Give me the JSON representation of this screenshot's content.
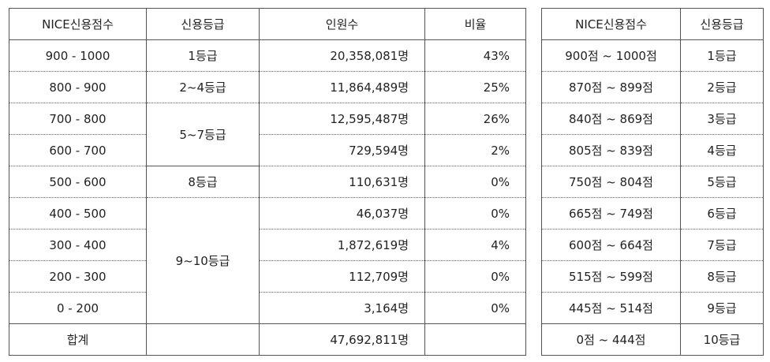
{
  "left_table": {
    "headers": [
      "NICE신용점수",
      "신용등급",
      "인원수",
      "비율"
    ],
    "rows": [
      {
        "score": "900 - 1000",
        "count": "20,358,081명",
        "ratio": "43%"
      },
      {
        "score": "800 - 900",
        "count": "11,864,489명",
        "ratio": "25%"
      },
      {
        "score": "700 - 800",
        "count": "12,595,487명",
        "ratio": "26%"
      },
      {
        "score": "600 - 700",
        "count": "729,594명",
        "ratio": "2%"
      },
      {
        "score": "500 - 600",
        "count": "110,631명",
        "ratio": "0%"
      },
      {
        "score": "400 - 500",
        "count": "46,037명",
        "ratio": "0%"
      },
      {
        "score": "300 - 400",
        "count": "1,872,619명",
        "ratio": "4%"
      },
      {
        "score": "200 - 300",
        "count": "112,709명",
        "ratio": "0%"
      },
      {
        "score": "0 - 200",
        "count": "3,164명",
        "ratio": "0%"
      }
    ],
    "grades": [
      "1등급",
      "2~4등급",
      "5~7등급",
      "8등급",
      "9~10등급"
    ],
    "total": {
      "label": "합계",
      "count": "47,692,811명"
    }
  },
  "right_table": {
    "headers": [
      "NICE신용점수",
      "신용등급"
    ],
    "rows": [
      {
        "score": "900점 ~ 1000점",
        "grade": "1등급"
      },
      {
        "score": "870점 ~ 899점",
        "grade": "2등급"
      },
      {
        "score": "840점 ~ 869점",
        "grade": "3등급"
      },
      {
        "score": "805점 ~ 839점",
        "grade": "4등급"
      },
      {
        "score": "750점 ~ 804점",
        "grade": "5등급"
      },
      {
        "score": "665점 ~ 749점",
        "grade": "6등급"
      },
      {
        "score": "600점 ~ 664점",
        "grade": "7등급"
      },
      {
        "score": "515점 ~ 599점",
        "grade": "8등급"
      },
      {
        "score": "445점 ~ 514점",
        "grade": "9등급"
      },
      {
        "score": "0점 ~ 444점",
        "grade": "10등급"
      }
    ]
  }
}
